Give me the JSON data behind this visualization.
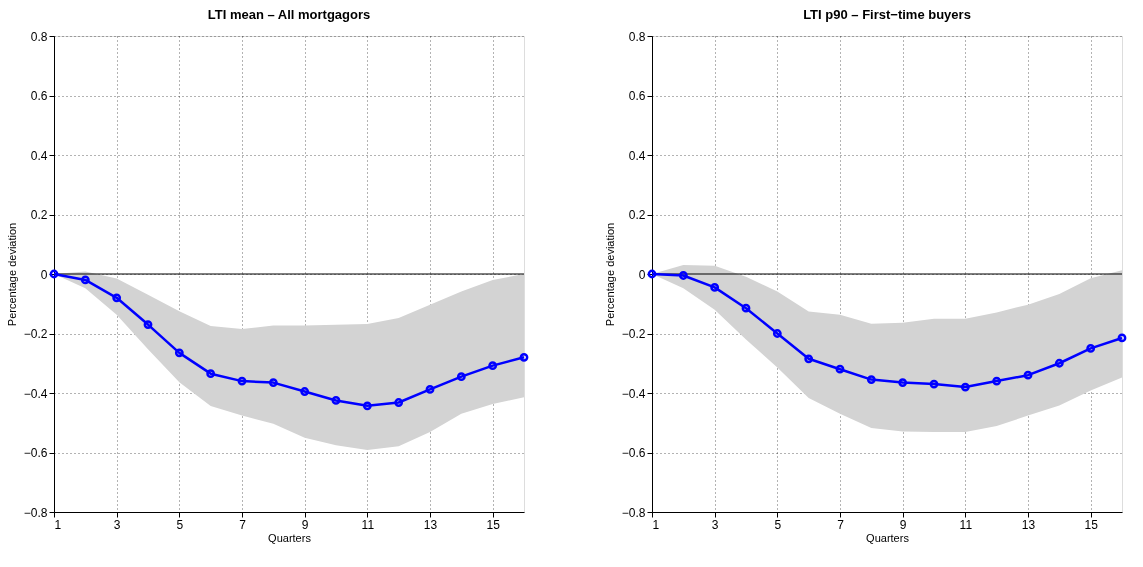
{
  "chart_data": [
    {
      "type": "line",
      "title": "LTI mean – All mortgagors",
      "xlabel": "Quarters",
      "ylabel": "Percentage deviation",
      "x": [
        1,
        2,
        3,
        4,
        5,
        6,
        7,
        8,
        9,
        10,
        11,
        12,
        13,
        14,
        15,
        16
      ],
      "series": [
        {
          "color": "#0000ff",
          "values": [
            0,
            -0.02,
            -0.08,
            -0.17,
            -0.265,
            -0.335,
            -0.36,
            -0.365,
            -0.395,
            -0.425,
            -0.443,
            -0.432,
            -0.388,
            -0.345,
            -0.308,
            -0.28
          ],
          "lower": [
            0,
            -0.048,
            -0.137,
            -0.253,
            -0.364,
            -0.444,
            -0.476,
            -0.503,
            -0.55,
            -0.576,
            -0.592,
            -0.579,
            -0.531,
            -0.47,
            -0.437,
            -0.414
          ],
          "upper": [
            0,
            0.008,
            -0.015,
            -0.07,
            -0.125,
            -0.175,
            -0.185,
            -0.173,
            -0.173,
            -0.171,
            -0.168,
            -0.148,
            -0.103,
            -0.059,
            -0.02,
            0
          ]
        }
      ],
      "xlim": [
        1,
        16
      ],
      "xticks": [
        1,
        3,
        5,
        7,
        9,
        11,
        13,
        15
      ],
      "ylim": [
        -0.8,
        0.8
      ],
      "yticks": [
        {
          "value": -0.8,
          "label": "−0.8"
        },
        {
          "value": -0.6,
          "label": "−0.6"
        },
        {
          "value": -0.4,
          "label": "−0.4"
        },
        {
          "value": -0.2,
          "label": "−0.2"
        },
        0,
        0.2,
        0.4,
        0.6,
        0.8
      ],
      "ref_lines": [
        {
          "axis": "y",
          "value": 0,
          "color": "#000000"
        }
      ],
      "grid": true,
      "marker": "circle",
      "line_style": "solid"
    },
    {
      "type": "line",
      "title": "LTI p90 – First−time buyers",
      "xlabel": "Quarters",
      "ylabel": "Percentage deviation",
      "x": [
        1,
        2,
        3,
        4,
        5,
        6,
        7,
        8,
        9,
        10,
        11,
        12,
        13,
        14,
        15,
        16
      ],
      "series": [
        {
          "color": "#0000ff",
          "values": [
            0,
            -0.005,
            -0.045,
            -0.115,
            -0.2,
            -0.285,
            -0.32,
            -0.355,
            -0.365,
            -0.37,
            -0.38,
            -0.36,
            -0.34,
            -0.3,
            -0.25,
            -0.215
          ],
          "lower": [
            0,
            -0.048,
            -0.12,
            -0.22,
            -0.314,
            -0.417,
            -0.47,
            -0.518,
            -0.529,
            -0.531,
            -0.531,
            -0.511,
            -0.476,
            -0.442,
            -0.392,
            -0.348
          ],
          "upper": [
            0,
            0.03,
            0.028,
            -0.009,
            -0.059,
            -0.126,
            -0.137,
            -0.167,
            -0.164,
            -0.15,
            -0.15,
            -0.129,
            -0.103,
            -0.067,
            -0.014,
            0.013
          ]
        }
      ],
      "xlim": [
        1,
        16
      ],
      "xticks": [
        1,
        3,
        5,
        7,
        9,
        11,
        13,
        15
      ],
      "ylim": [
        -0.8,
        0.8
      ],
      "yticks": [
        {
          "value": -0.8,
          "label": "−0.8"
        },
        {
          "value": -0.6,
          "label": "−0.6"
        },
        {
          "value": -0.4,
          "label": "−0.4"
        },
        {
          "value": -0.2,
          "label": "−0.2"
        },
        0,
        0.2,
        0.4,
        0.6,
        0.8
      ],
      "ref_lines": [
        {
          "axis": "y",
          "value": 0,
          "color": "#000000"
        }
      ],
      "grid": true,
      "marker": "circle",
      "line_style": "solid"
    }
  ]
}
